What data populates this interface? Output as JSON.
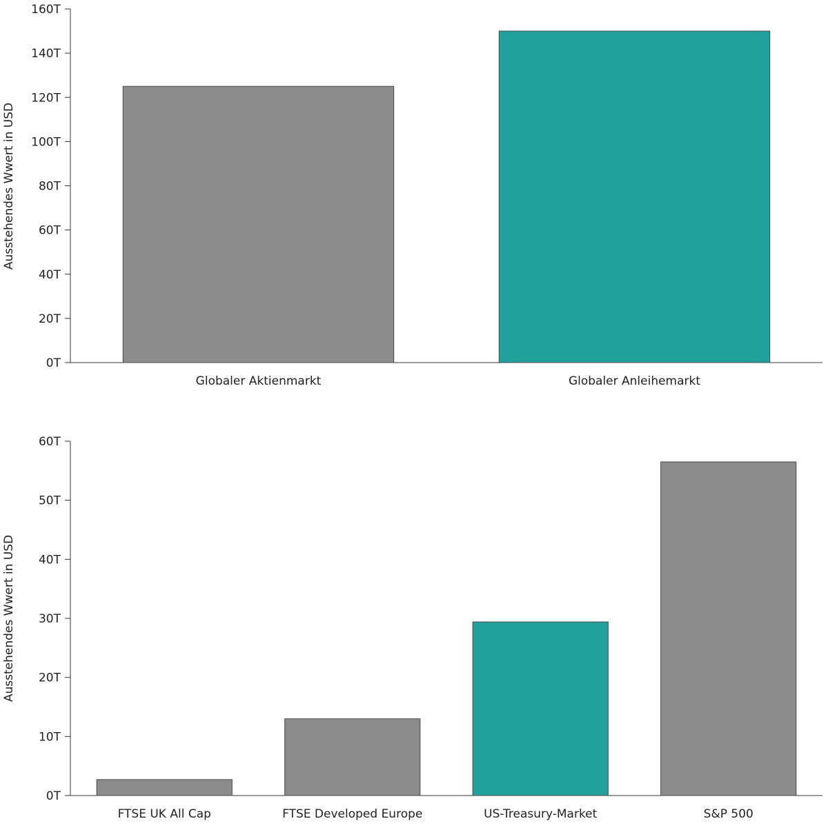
{
  "colors": {
    "gray": "#8c8b8c",
    "teal": "#21a09c",
    "axis": "#333333"
  },
  "chart_data": [
    {
      "type": "bar",
      "title": "",
      "xlabel": "",
      "ylabel": "Ausstehendes Wwert in USD",
      "ylim": [
        0,
        160
      ],
      "yticks": [
        "0T",
        "20T",
        "40T",
        "60T",
        "80T",
        "100T",
        "120T",
        "140T",
        "160T"
      ],
      "ytick_values": [
        0,
        20,
        40,
        60,
        80,
        100,
        120,
        140,
        160
      ],
      "categories": [
        "Globaler Aktienmarkt",
        "Globaler Anleihemarkt"
      ],
      "values": [
        125,
        150
      ],
      "bar_colors": [
        "#8c8b8c",
        "#21a09c"
      ],
      "grid": false
    },
    {
      "type": "bar",
      "title": "",
      "xlabel": "",
      "ylabel": "Ausstehendes Wwert in USD",
      "ylim": [
        0,
        60
      ],
      "yticks": [
        "0T",
        "10T",
        "20T",
        "30T",
        "40T",
        "50T",
        "60T"
      ],
      "ytick_values": [
        0,
        10,
        20,
        30,
        40,
        50,
        60
      ],
      "categories": [
        "FTSE UK All Cap",
        "FTSE Developed Europe",
        "US-Treasury-Market",
        "S&P 500"
      ],
      "values": [
        2.7,
        13.0,
        29.4,
        56.5
      ],
      "bar_colors": [
        "#8c8b8c",
        "#8c8b8c",
        "#21a09c",
        "#8c8b8c"
      ],
      "grid": false
    }
  ]
}
